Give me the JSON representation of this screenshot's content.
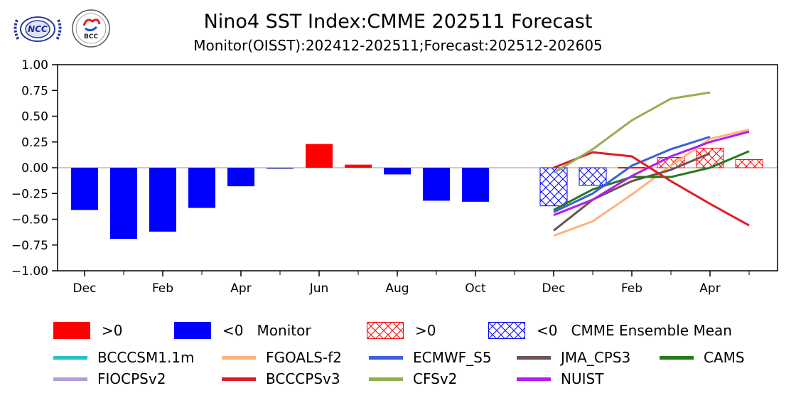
{
  "header": {
    "logos": [
      "ncc-logo",
      "bcc-logo"
    ],
    "logo_text": [
      "NCC",
      "BCC"
    ]
  },
  "chart_data": {
    "type": "bar",
    "title": "Nino4 SST Index:CMME 202511 Forecast",
    "subtitle": "Monitor(OISST):202412-202511;Forecast:202512-202605",
    "xlabel": "",
    "ylabel": "",
    "ylim": [
      -1.0,
      1.0
    ],
    "yticks": [
      1.0,
      0.75,
      0.5,
      0.25,
      0.0,
      -0.25,
      -0.5,
      -0.75,
      -1.0
    ],
    "ytick_labels": [
      "1.00",
      "0.75",
      "0.50",
      "0.25",
      "0.00",
      "−0.25",
      "−0.50",
      "−0.75",
      "−1.00"
    ],
    "months": [
      "Dec",
      "Jan",
      "Feb",
      "Mar",
      "Apr",
      "May",
      "Jun",
      "Jul",
      "Aug",
      "Sep",
      "Oct",
      "Nov",
      "Dec",
      "Jan",
      "Feb",
      "Mar",
      "Apr",
      "May"
    ],
    "xtick_labels": [
      "Dec",
      "",
      "Feb",
      "",
      "Apr",
      "",
      "Jun",
      "",
      "Aug",
      "",
      "Oct",
      "",
      "Dec",
      "",
      "Feb",
      "",
      "Apr",
      ""
    ],
    "grid": false,
    "zero_line": true,
    "monitor": {
      "period": "202412-202511",
      "months": [
        "Dec",
        "Jan",
        "Feb",
        "Mar",
        "Apr",
        "May",
        "Jun",
        "Jul",
        "Aug",
        "Sep",
        "Oct",
        "Nov"
      ],
      "values": [
        -0.41,
        -0.69,
        -0.62,
        -0.39,
        -0.18,
        -0.01,
        0.23,
        0.03,
        -0.065,
        -0.32,
        -0.33,
        0.0
      ]
    },
    "ensemble_mean": {
      "period": "202512-202605",
      "months": [
        "Dec",
        "Jan",
        "Feb",
        "Mar",
        "Apr",
        "May"
      ],
      "values": [
        -0.37,
        -0.17,
        0.003,
        0.1,
        0.19,
        0.08
      ]
    },
    "series": [
      {
        "name": "BCCCSM1.1m",
        "color": "#26c0c7",
        "values": [
          null,
          null,
          null,
          null,
          null,
          null
        ]
      },
      {
        "name": "FGOALS-f2",
        "color": "#ffb27f",
        "values": [
          -0.66,
          -0.52,
          -0.26,
          0.02,
          0.28,
          0.37
        ]
      },
      {
        "name": "ECMWF_S5",
        "color": "#3a5fe0",
        "values": [
          -0.43,
          -0.25,
          0.02,
          0.18,
          0.3,
          null
        ]
      },
      {
        "name": "JMA_CPS3",
        "color": "#6b5350",
        "values": [
          -0.61,
          -0.31,
          -0.13,
          -0.02,
          0.14,
          null
        ]
      },
      {
        "name": "CAMS",
        "color": "#247a1a",
        "values": [
          -0.41,
          -0.21,
          -0.09,
          -0.09,
          0.0,
          0.16
        ]
      },
      {
        "name": "FIOCPSv2",
        "color": "#b39ddb",
        "values": [
          null,
          null,
          null,
          null,
          null,
          null
        ]
      },
      {
        "name": "BCCCPSv3",
        "color": "#e01b24",
        "values": [
          0.0,
          0.15,
          0.11,
          -0.13,
          -0.35,
          -0.56
        ]
      },
      {
        "name": "CFSv2",
        "color": "#93b04f",
        "values": [
          -0.05,
          0.18,
          0.46,
          0.67,
          0.73,
          null
        ]
      },
      {
        "name": "NUIST",
        "color": "#b31df0",
        "values": [
          -0.46,
          -0.31,
          -0.08,
          0.11,
          0.25,
          0.35
        ]
      }
    ],
    "colors": {
      "positive": "#ff0000",
      "negative": "#0000ff",
      "zero_line": "#999999"
    },
    "legend": {
      "placement": "bottom",
      "row1": [
        {
          "key": "pos-solid",
          "label": ">0"
        },
        {
          "key": "neg-solid",
          "label": "<0   Monitor"
        },
        {
          "key": "pos-hatch",
          "label": ">0"
        },
        {
          "key": "neg-hatch",
          "label": "<0   CMME Ensemble Mean"
        }
      ]
    }
  }
}
